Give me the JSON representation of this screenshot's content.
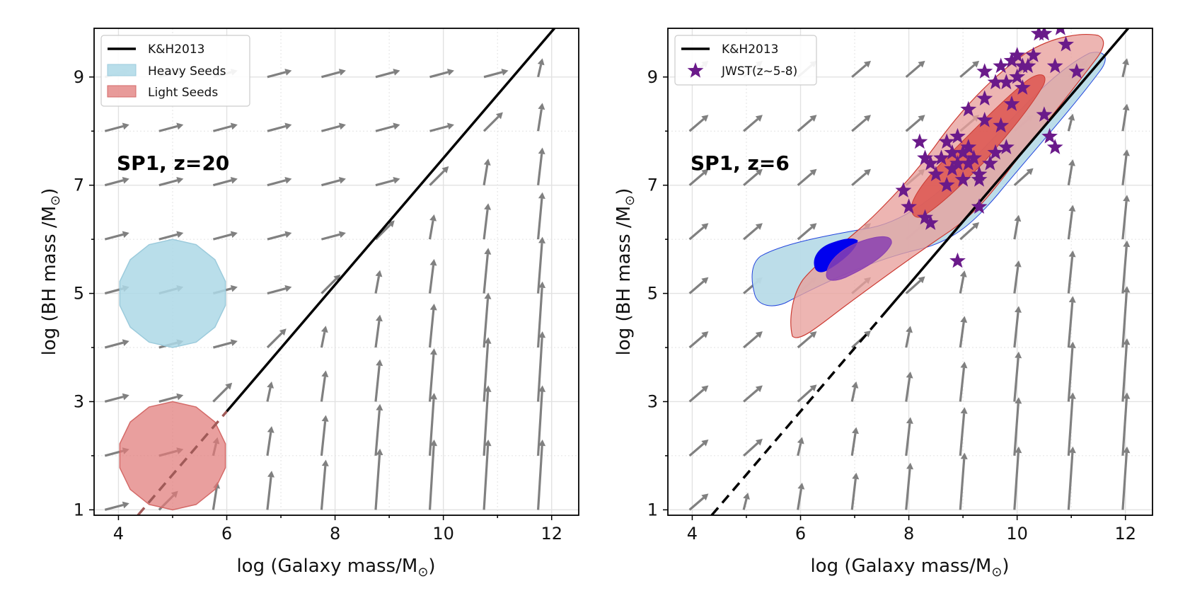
{
  "figure": {
    "colors": {
      "arrow": "#808080",
      "relation": "#000000",
      "heavy_fill": "#add8e6",
      "heavy_edge": "#9ccbdc",
      "light_fill": "#e07a78",
      "light_edge": "#d46a68",
      "heavy_contour_outer": "#b8dbe8",
      "heavy_contour_edge": "#2244dd",
      "heavy_contour_inner": "#0000ee",
      "light_contour_outer": "#e8a09c",
      "light_contour_edge": "#cc3b33",
      "light_contour_inner": "#dd5a54",
      "overlap_inner": "#8a3fb0",
      "jwst": "#6a1a8a",
      "grid": "#e2e2e2"
    }
  },
  "chart_data": [
    {
      "type": "scatter",
      "title": "",
      "annotation": "SP1, z=20",
      "xlabel": "log (Galaxy mass/M",
      "ylabel": "log (BH mass /M",
      "sun_symbol": "⊙",
      "label_suffix": ")",
      "xlim": [
        3.55,
        12.5
      ],
      "ylim": [
        0.9,
        9.9
      ],
      "xticks": [
        4,
        6,
        8,
        10,
        12
      ],
      "yticks": [
        1,
        3,
        5,
        7,
        9
      ],
      "legend": {
        "position": "top-left",
        "entries": [
          {
            "label": "K&H2013",
            "kind": "line"
          },
          {
            "label": "Heavy Seeds",
            "kind": "patch-heavy"
          },
          {
            "label": "Light Seeds",
            "kind": "patch-light"
          }
        ]
      },
      "relation": {
        "name": "K&H2013",
        "slope": 1.17,
        "intercept": -4.2,
        "dashed_below_x": 6.0
      },
      "seed_regions": [
        {
          "name": "Heavy Seeds",
          "center": [
            5.0,
            5.0
          ],
          "radius": [
            1.0,
            1.0
          ]
        },
        {
          "name": "Light Seeds",
          "center": [
            5.0,
            2.0
          ],
          "radius": [
            1.0,
            1.0
          ]
        }
      ]
    },
    {
      "type": "scatter",
      "title": "",
      "annotation": "SP1, z=6",
      "xlabel": "log (Galaxy mass/M",
      "ylabel": "log (BH mass /M",
      "sun_symbol": "⊙",
      "label_suffix": ")",
      "xlim": [
        3.55,
        12.5
      ],
      "ylim": [
        0.9,
        9.9
      ],
      "xticks": [
        4,
        6,
        8,
        10,
        12
      ],
      "yticks": [
        1,
        3,
        5,
        7,
        9
      ],
      "legend": {
        "position": "top-left",
        "entries": [
          {
            "label": "K&H2013",
            "kind": "line"
          },
          {
            "label": "JWST(z~5-8)",
            "kind": "star"
          }
        ]
      },
      "relation": {
        "name": "K&H2013",
        "slope": 1.17,
        "intercept": -4.2,
        "dashed_below_x": 7.5
      },
      "jwst_points": {
        "x": [
          7.9,
          8.0,
          8.2,
          8.3,
          8.3,
          8.4,
          8.5,
          8.6,
          8.7,
          8.8,
          8.8,
          8.9,
          8.9,
          9.0,
          9.0,
          9.1,
          9.1,
          9.2,
          9.3,
          9.3,
          9.4,
          9.4,
          9.4,
          9.5,
          9.6,
          9.6,
          9.7,
          9.7,
          9.8,
          9.8,
          9.9,
          9.9,
          10.0,
          10.0,
          10.1,
          10.1,
          10.2,
          10.3,
          10.4,
          10.5,
          10.5,
          10.6,
          10.7,
          10.7,
          10.8,
          10.9,
          11.1,
          8.9,
          9.3,
          8.4,
          9.1,
          8.7
        ],
        "y": [
          6.9,
          6.6,
          7.8,
          6.4,
          7.5,
          6.3,
          7.2,
          7.5,
          7.0,
          7.6,
          7.3,
          7.9,
          7.4,
          7.1,
          7.6,
          7.4,
          7.7,
          7.5,
          6.6,
          7.2,
          8.2,
          8.6,
          9.1,
          7.4,
          7.6,
          8.9,
          9.2,
          8.1,
          8.9,
          7.7,
          8.5,
          9.3,
          9.0,
          9.4,
          8.8,
          9.2,
          9.2,
          9.4,
          9.8,
          9.8,
          8.3,
          7.9,
          7.7,
          9.2,
          9.9,
          9.6,
          9.1,
          5.6,
          7.1,
          7.4,
          8.4,
          7.8
        ]
      }
    }
  ]
}
